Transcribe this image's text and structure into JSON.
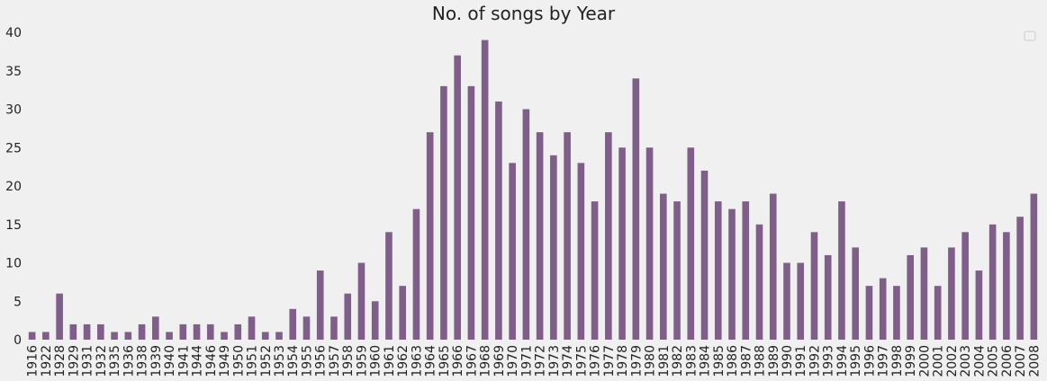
{
  "chart_data": {
    "type": "bar",
    "title": "No. of songs by Year",
    "xlabel": "",
    "ylabel": "",
    "ylim": [
      0,
      40
    ],
    "yticks": [
      0,
      5,
      10,
      15,
      20,
      25,
      30,
      35,
      40
    ],
    "grid": false,
    "legend": "top-right (empty)",
    "bar_color": "#7f5f8a",
    "categories": [
      "1916",
      "1922",
      "1928",
      "1929",
      "1931",
      "1932",
      "1935",
      "1936",
      "1938",
      "1939",
      "1940",
      "1941",
      "1944",
      "1946",
      "1949",
      "1950",
      "1951",
      "1952",
      "1953",
      "1954",
      "1955",
      "1956",
      "1957",
      "1958",
      "1959",
      "1960",
      "1961",
      "1962",
      "1963",
      "1964",
      "1965",
      "1966",
      "1967",
      "1968",
      "1969",
      "1970",
      "1971",
      "1972",
      "1973",
      "1974",
      "1975",
      "1976",
      "1977",
      "1978",
      "1979",
      "1980",
      "1981",
      "1982",
      "1983",
      "1984",
      "1985",
      "1986",
      "1987",
      "1988",
      "1989",
      "1990",
      "1991",
      "1992",
      "1993",
      "1994",
      "1995",
      "1996",
      "1997",
      "1998",
      "1999",
      "2000",
      "2001",
      "2002",
      "2003",
      "2004",
      "2005",
      "2006",
      "2007",
      "2008"
    ],
    "values": [
      1,
      1,
      6,
      2,
      2,
      2,
      1,
      1,
      2,
      3,
      1,
      2,
      2,
      2,
      1,
      2,
      3,
      1,
      1,
      4,
      3,
      9,
      3,
      6,
      10,
      5,
      14,
      7,
      17,
      27,
      33,
      37,
      33,
      39,
      31,
      23,
      30,
      27,
      24,
      27,
      23,
      18,
      27,
      25,
      34,
      25,
      19,
      18,
      25,
      22,
      18,
      17,
      18,
      15,
      19,
      10,
      10,
      14,
      11,
      18,
      12,
      7,
      8,
      7,
      11,
      12,
      7,
      12,
      14,
      9,
      15,
      14,
      16,
      19
    ]
  }
}
